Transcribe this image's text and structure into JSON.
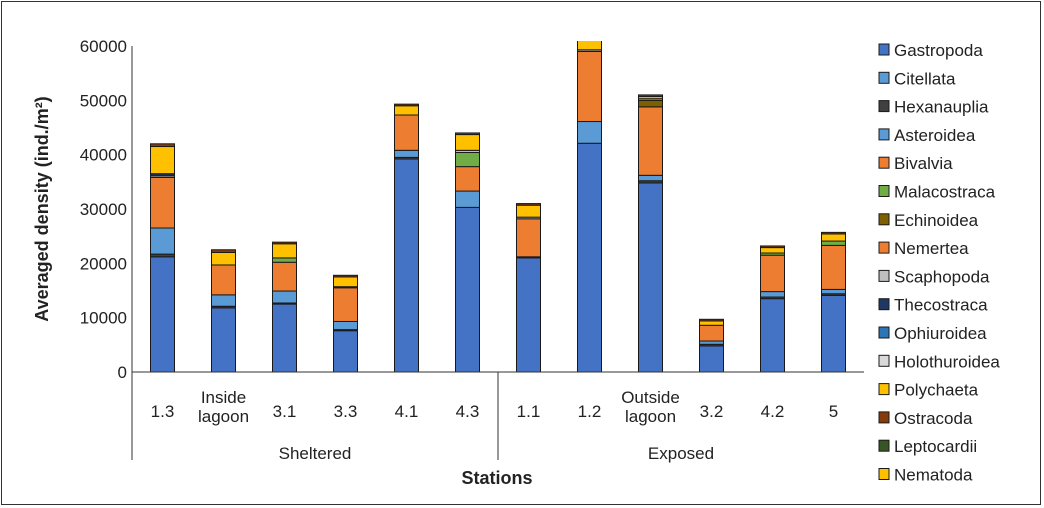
{
  "chart_data": {
    "type": "bar",
    "stacked": true,
    "title": "",
    "xlabel": "Stations",
    "ylabel": "Averaged density (ind./m²)",
    "ylim": [
      0,
      60000
    ],
    "yticks": [
      0,
      10000,
      20000,
      30000,
      40000,
      50000,
      60000
    ],
    "ytick_labels": [
      "0",
      "10000",
      "20000",
      "30000",
      "40000",
      "50000",
      "60000"
    ],
    "grid": false,
    "legend_position": "right",
    "categories": [
      "1.3",
      "Inside lagoon",
      "3.1",
      "3.3",
      "4.1",
      "4.3",
      "1.1",
      "1.2",
      "Outside lagoon",
      "3.2",
      "4.2",
      "5"
    ],
    "category_lines": [
      [
        "1.3"
      ],
      [
        "Inside",
        "lagoon"
      ],
      [
        "3.1"
      ],
      [
        "3.3"
      ],
      [
        "4.1"
      ],
      [
        "4.3"
      ],
      [
        "1.1"
      ],
      [
        "1.2"
      ],
      [
        "Outside",
        "lagoon"
      ],
      [
        "3.2"
      ],
      [
        "4.2"
      ],
      [
        "5"
      ]
    ],
    "groups": [
      {
        "label": "Sheltered",
        "start": 0,
        "end": 5
      },
      {
        "label": "Exposed",
        "start": 6,
        "end": 11
      }
    ],
    "series": [
      {
        "name": "Gastropoda",
        "color": "#4472c4",
        "values": [
          21200,
          11800,
          12500,
          7600,
          39200,
          30300,
          21000,
          42100,
          34800,
          4800,
          13500,
          14100
        ]
      },
      {
        "name": "Citellata",
        "color": "#5b9bd5",
        "values": [
          0,
          0,
          0,
          0,
          0,
          0,
          0,
          4000,
          0,
          0,
          0,
          0
        ]
      },
      {
        "name": "Hexanauplia",
        "color": "#404040",
        "values": [
          500,
          300,
          200,
          200,
          300,
          0,
          200,
          0,
          400,
          300,
          300,
          300
        ]
      },
      {
        "name": "Asteroidea",
        "color": "#5b9bd5",
        "values": [
          4800,
          2100,
          2200,
          1500,
          1300,
          3000,
          0,
          0,
          1000,
          600,
          1000,
          800
        ]
      },
      {
        "name": "Bivalvia",
        "color": "#ed7d31",
        "values": [
          9300,
          5500,
          5300,
          6200,
          6500,
          4500,
          7000,
          12900,
          12600,
          2900,
          6700,
          8100
        ]
      },
      {
        "name": "Malacostraca",
        "color": "#70ad47",
        "values": [
          0,
          0,
          800,
          0,
          0,
          2600,
          0,
          0,
          0,
          0,
          400,
          800
        ]
      },
      {
        "name": "Echinoidea",
        "color": "#7f6000",
        "values": [
          0,
          0,
          0,
          0,
          0,
          0,
          0,
          0,
          1200,
          0,
          0,
          0
        ]
      },
      {
        "name": "Nemertea",
        "color": "#ed7d31",
        "values": [
          0,
          0,
          0,
          0,
          0,
          0,
          0,
          0,
          0,
          0,
          0,
          0
        ]
      },
      {
        "name": "Scaphopoda",
        "color": "#bfbfbf",
        "values": [
          300,
          0,
          0,
          0,
          0,
          400,
          300,
          300,
          300,
          0,
          0,
          0
        ]
      },
      {
        "name": "Thecostraca",
        "color": "#1f3864",
        "values": [
          400,
          0,
          0,
          200,
          0,
          0,
          0,
          0,
          0,
          0,
          0,
          0
        ]
      },
      {
        "name": "Ophiuroidea",
        "color": "#2e75b6",
        "values": [
          0,
          0,
          0,
          0,
          0,
          0,
          0,
          0,
          0,
          0,
          0,
          0
        ]
      },
      {
        "name": "Holothuroidea",
        "color": "#d9d9d9",
        "values": [
          0,
          0,
          0,
          0,
          0,
          0,
          0,
          0,
          0,
          0,
          0,
          0
        ]
      },
      {
        "name": "Polychaeta",
        "color": "#ffc000",
        "values": [
          5000,
          2300,
          2600,
          1800,
          1700,
          2900,
          2200,
          2700,
          400,
          800,
          1000,
          1300
        ]
      },
      {
        "name": "Ostracoda",
        "color": "#843c0c",
        "values": [
          500,
          500,
          300,
          300,
          300,
          300,
          300,
          300,
          300,
          300,
          300,
          300
        ]
      },
      {
        "name": "Leptocardii",
        "color": "#375623",
        "values": [
          0,
          0,
          0,
          0,
          0,
          0,
          0,
          0,
          0,
          0,
          0,
          0
        ]
      },
      {
        "name": "Nematoda",
        "color": "#ffc000",
        "values": [
          0,
          0,
          0,
          0,
          0,
          0,
          0,
          0,
          0,
          0,
          0,
          0
        ]
      }
    ]
  }
}
